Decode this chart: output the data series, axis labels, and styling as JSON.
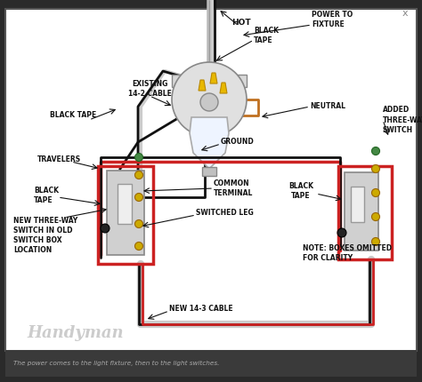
{
  "figsize": [
    4.74,
    4.3
  ],
  "dpi": 100,
  "bg_outer": "#2a2a2a",
  "bg_main": "#ffffff",
  "bg_caption_bar": "#3a3a3a",
  "caption": "The power comes to the light fixture, then to the light switches.",
  "caption_color": "#aaaaaa",
  "close_x": "x",
  "close_x_color": "#888888",
  "handyman_text": "Handyman",
  "handyman_color": "#cccccc",
  "handyman_bg": "#2a2a2a",
  "wire_black": "#111111",
  "wire_white": "#cccccc",
  "wire_red": "#cc2222",
  "wire_orange": "#c07020",
  "wire_green": "#336633",
  "wirenut_yellow": "#e8b800",
  "wirenut_edge": "#b88800",
  "switch_body": "#d0d0d0",
  "switch_edge": "#888888",
  "switch_toggle": "#eeeeee",
  "screw_gold": "#ccaa00",
  "screw_edge": "#996600",
  "screw_green": "#448844",
  "screw_green_edge": "#226622",
  "red_border": "#cc2222",
  "fixture_plate": "#d8d8d8",
  "fixture_circle": "#e0e0e0",
  "bulb_fill": "#eef4ff",
  "bulb_edge": "#aaaaaa",
  "label_color": "#111111",
  "label_fs": 5.5,
  "label_fw": "bold",
  "labels": {
    "hot": "HOT",
    "black_tape_top": "BLACK\nTAPE",
    "power_to_fixture": "POWER TO\nFIXTURE",
    "existing_cable": "EXISTING\n14-2 CABLE",
    "neutral": "NEUTRAL",
    "black_tape_left": "BLACK TAPE",
    "ground": "GROUND",
    "added_switch": "ADDED\nTHREE-WAY\nSWITCH",
    "travelers": "TRAVELERS",
    "black_tape_mid": "BLACK\nTAPE",
    "common_terminal": "COMMON\nTERMINAL",
    "switched_leg": "SWITCHED LEG",
    "new_three_way": "NEW THREE-WAY\nSWITCH IN OLD\nSWITCH BOX\nLOCATION",
    "new_14_3": "NEW 14-3 CABLE",
    "black_tape_right": "BLACK\nTAPE",
    "note": "NOTE: BOXES OMITTED\nFOR CLARITY"
  }
}
